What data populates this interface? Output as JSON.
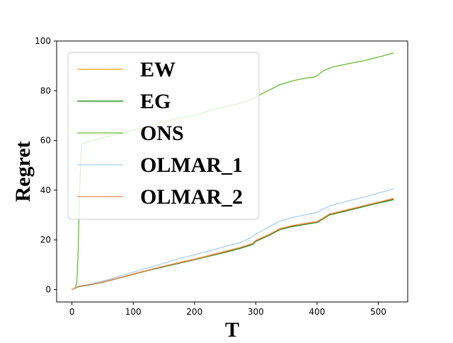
{
  "chart_data": {
    "type": "line",
    "title": "",
    "xlabel": "T",
    "ylabel": "Regret",
    "xlim": [
      -25,
      548
    ],
    "ylim": [
      -5,
      100
    ],
    "x_ticks": [
      0,
      100,
      200,
      300,
      400,
      500
    ],
    "y_ticks": [
      0,
      20,
      40,
      60,
      80,
      100
    ],
    "grid": false,
    "legend_position": "top-left",
    "series": [
      {
        "name": "EW",
        "color": "#ffa500",
        "points": [
          [
            0,
            0
          ],
          [
            10,
            1.2
          ],
          [
            25,
            1.8
          ],
          [
            50,
            3
          ],
          [
            75,
            4.6
          ],
          [
            100,
            6.3
          ],
          [
            125,
            7.9
          ],
          [
            150,
            9.4
          ],
          [
            175,
            10.9
          ],
          [
            200,
            12.3
          ],
          [
            225,
            13.8
          ],
          [
            250,
            15.4
          ],
          [
            275,
            17
          ],
          [
            295,
            18.6
          ],
          [
            300,
            19.8
          ],
          [
            320,
            22
          ],
          [
            340,
            24.6
          ],
          [
            360,
            25.8
          ],
          [
            380,
            26.6
          ],
          [
            400,
            27.4
          ],
          [
            410,
            28.8
          ],
          [
            420,
            30.4
          ],
          [
            450,
            32.2
          ],
          [
            480,
            34
          ],
          [
            500,
            35.2
          ],
          [
            525,
            36.5
          ]
        ]
      },
      {
        "name": "EG",
        "color": "#008000",
        "points": [
          [
            0,
            0
          ],
          [
            10,
            1.1
          ],
          [
            25,
            1.7
          ],
          [
            50,
            2.9
          ],
          [
            75,
            4.5
          ],
          [
            100,
            6.1
          ],
          [
            125,
            7.7
          ],
          [
            150,
            9.2
          ],
          [
            175,
            10.6
          ],
          [
            200,
            12
          ],
          [
            225,
            13.5
          ],
          [
            250,
            15
          ],
          [
            275,
            16.6
          ],
          [
            295,
            18.2
          ],
          [
            300,
            19.4
          ],
          [
            320,
            21.6
          ],
          [
            340,
            24.2
          ],
          [
            360,
            25.4
          ],
          [
            380,
            26.2
          ],
          [
            400,
            27
          ],
          [
            410,
            28.4
          ],
          [
            420,
            30
          ],
          [
            450,
            31.8
          ],
          [
            480,
            33.6
          ],
          [
            500,
            34.8
          ],
          [
            525,
            36.2
          ]
        ]
      },
      {
        "name": "ONS",
        "color": "#66bb33",
        "points": [
          [
            0,
            0
          ],
          [
            5,
            0.5
          ],
          [
            8,
            3
          ],
          [
            10,
            14
          ],
          [
            12,
            35
          ],
          [
            14,
            50
          ],
          [
            16,
            58.5
          ],
          [
            25,
            59.5
          ],
          [
            50,
            61
          ],
          [
            75,
            62.5
          ],
          [
            100,
            64
          ],
          [
            125,
            65.8
          ],
          [
            150,
            67.5
          ],
          [
            175,
            69
          ],
          [
            200,
            70
          ],
          [
            225,
            72
          ],
          [
            250,
            73.5
          ],
          [
            275,
            75
          ],
          [
            290,
            76
          ],
          [
            300,
            77.5
          ],
          [
            320,
            80
          ],
          [
            340,
            82.5
          ],
          [
            360,
            84
          ],
          [
            380,
            85
          ],
          [
            395,
            85.5
          ],
          [
            400,
            86
          ],
          [
            410,
            88
          ],
          [
            425,
            89.5
          ],
          [
            450,
            90.8
          ],
          [
            475,
            92
          ],
          [
            500,
            93.5
          ],
          [
            525,
            95.2
          ]
        ]
      },
      {
        "name": "OLMAR_1",
        "color": "#a9cdf0",
        "points": [
          [
            0,
            0
          ],
          [
            10,
            1.3
          ],
          [
            25,
            2
          ],
          [
            50,
            3.4
          ],
          [
            75,
            5.2
          ],
          [
            100,
            7
          ],
          [
            125,
            8.8
          ],
          [
            150,
            10.6
          ],
          [
            175,
            12.4
          ],
          [
            200,
            14
          ],
          [
            225,
            15.6
          ],
          [
            250,
            17.3
          ],
          [
            275,
            19
          ],
          [
            290,
            20.6
          ],
          [
            300,
            22.3
          ],
          [
            320,
            25
          ],
          [
            340,
            27.6
          ],
          [
            360,
            29
          ],
          [
            380,
            30
          ],
          [
            400,
            31
          ],
          [
            410,
            32.4
          ],
          [
            420,
            33.6
          ],
          [
            450,
            35.6
          ],
          [
            480,
            37.4
          ],
          [
            500,
            38.8
          ],
          [
            525,
            40.5
          ]
        ]
      },
      {
        "name": "OLMAR_2",
        "color": "#f4895f",
        "points": [
          [
            0,
            0
          ],
          [
            10,
            1.2
          ],
          [
            25,
            1.8
          ],
          [
            50,
            3
          ],
          [
            75,
            4.6
          ],
          [
            100,
            6.2
          ],
          [
            125,
            7.8
          ],
          [
            150,
            9.4
          ],
          [
            175,
            10.8
          ],
          [
            200,
            12.2
          ],
          [
            225,
            13.7
          ],
          [
            250,
            15.3
          ],
          [
            275,
            16.9
          ],
          [
            295,
            18.5
          ],
          [
            300,
            19.7
          ],
          [
            320,
            21.9
          ],
          [
            340,
            24.5
          ],
          [
            360,
            25.7
          ],
          [
            380,
            26.5
          ],
          [
            400,
            27.3
          ],
          [
            410,
            28.7
          ],
          [
            420,
            30.3
          ],
          [
            450,
            32.1
          ],
          [
            480,
            33.9
          ],
          [
            500,
            35.1
          ],
          [
            525,
            36.8
          ]
        ]
      }
    ]
  }
}
